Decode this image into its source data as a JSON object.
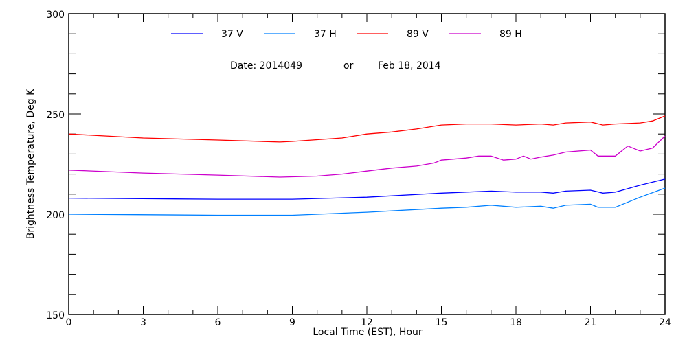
{
  "chart_data": {
    "type": "line",
    "title": "",
    "annotation": {
      "date_label": "Date: 2014049",
      "or_label": "or",
      "date_text": "Feb 18, 2014"
    },
    "xlabel": "Local Time (EST), Hour",
    "ylabel": "Brightness Temperature, Deg K",
    "xlim": [
      0,
      24
    ],
    "ylim": [
      150,
      300
    ],
    "xticks": [
      "0",
      "3",
      "6",
      "9",
      "12",
      "15",
      "18",
      "21",
      "24"
    ],
    "yticks": [
      "150",
      "200",
      "250",
      "300"
    ],
    "grid": false,
    "legend_placement": "top",
    "series": [
      {
        "name": "37 V",
        "color": "#0000ff",
        "x": [
          0,
          6,
          9,
          12,
          15,
          17,
          18,
          19,
          19.5,
          20,
          21,
          21.5,
          22,
          23,
          24
        ],
        "y": [
          208,
          207.5,
          207.5,
          208.5,
          210.5,
          211.5,
          211,
          211,
          210.5,
          211.5,
          212,
          210.5,
          211,
          214.5,
          217.5
        ]
      },
      {
        "name": "37 H",
        "color": "#0080ff",
        "x": [
          0,
          6,
          9,
          12,
          15,
          16,
          17,
          18,
          19,
          19.5,
          20,
          21,
          21.3,
          22,
          23,
          24
        ],
        "y": [
          200,
          199.5,
          199.5,
          201,
          203,
          203.5,
          204.5,
          203.5,
          204,
          203,
          204.5,
          205,
          203.5,
          203.5,
          208.5,
          213
        ]
      },
      {
        "name": "89 V",
        "color": "#ff0000",
        "x": [
          0,
          3,
          6,
          8.5,
          9,
          11,
          12,
          13,
          14,
          15,
          16,
          17,
          18,
          19,
          19.5,
          20,
          21,
          21.5,
          22,
          23,
          23.5,
          24
        ],
        "y": [
          240,
          238,
          237,
          236,
          236.3,
          238,
          240,
          241,
          242.5,
          244.5,
          245,
          245,
          244.5,
          245,
          244.5,
          245.5,
          246,
          244.5,
          245,
          245.5,
          246.5,
          249
        ]
      },
      {
        "name": "89 H",
        "color": "#cc00cc",
        "x": [
          0,
          3,
          6,
          8.5,
          10,
          11,
          12,
          13,
          14,
          14.7,
          15,
          16,
          16.5,
          17,
          17.5,
          18,
          18.3,
          18.6,
          19,
          19.5,
          20,
          21,
          21.3,
          22,
          22.5,
          23,
          23.5,
          24
        ],
        "y": [
          222,
          220.5,
          219.5,
          218.5,
          219,
          220,
          221.5,
          223,
          224,
          225.5,
          227,
          228,
          229,
          229,
          227,
          227.5,
          229,
          227.5,
          228.5,
          229.5,
          231,
          232,
          229,
          229,
          234,
          231.5,
          233,
          239
        ]
      }
    ]
  }
}
